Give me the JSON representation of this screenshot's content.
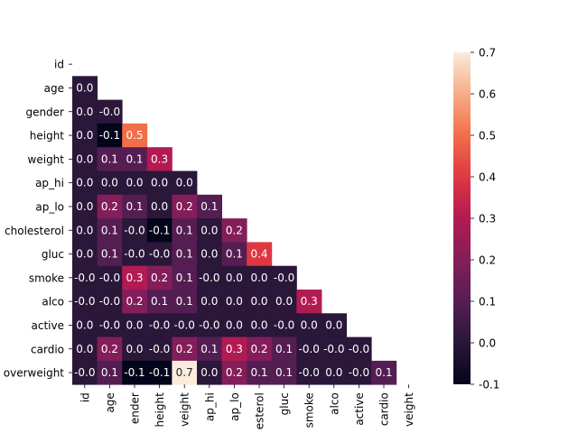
{
  "chart_data": {
    "type": "heatmap",
    "title": "",
    "xlabel": "",
    "ylabel": "",
    "mask": "upper-triangle",
    "x_tick_labels": [
      "id",
      "age",
      "ender",
      "height",
      "veight",
      "ap_hi",
      "ap_lo",
      "esterol",
      "gluc",
      "smoke",
      "alco",
      "active",
      "cardio",
      "veight"
    ],
    "y_tick_labels": [
      "id",
      "age",
      "gender",
      "height",
      "weight",
      "ap_hi",
      "ap_lo",
      "cholesterol",
      "gluc",
      "smoke",
      "alco",
      "active",
      "cardio",
      "overweight"
    ],
    "values": [
      [],
      [
        "0.0"
      ],
      [
        "0.0",
        "-0.0"
      ],
      [
        "0.0",
        "-0.1",
        "0.5"
      ],
      [
        "0.0",
        "0.1",
        "0.1",
        "0.3"
      ],
      [
        "0.0",
        "0.0",
        "0.0",
        "0.0",
        "0.0"
      ],
      [
        "0.0",
        "0.2",
        "0.1",
        "0.0",
        "0.2",
        "0.1"
      ],
      [
        "0.0",
        "0.1",
        "-0.0",
        "-0.1",
        "0.1",
        "0.0",
        "0.2"
      ],
      [
        "0.0",
        "0.1",
        "-0.0",
        "-0.0",
        "0.1",
        "0.0",
        "0.1",
        "0.4"
      ],
      [
        "-0.0",
        "-0.0",
        "0.3",
        "0.2",
        "0.1",
        "-0.0",
        "0.0",
        "0.0",
        "-0.0"
      ],
      [
        "-0.0",
        "-0.0",
        "0.2",
        "0.1",
        "0.1",
        "0.0",
        "0.0",
        "0.0",
        "0.0",
        "0.3"
      ],
      [
        "0.0",
        "-0.0",
        "0.0",
        "-0.0",
        "-0.0",
        "-0.0",
        "0.0",
        "0.0",
        "-0.0",
        "0.0",
        "0.0"
      ],
      [
        "0.0",
        "0.2",
        "0.0",
        "-0.0",
        "0.2",
        "0.1",
        "0.3",
        "0.2",
        "0.1",
        "-0.0",
        "-0.0",
        "-0.0"
      ],
      [
        "-0.0",
        "0.1",
        "-0.1",
        "-0.1",
        "0.7",
        "0.0",
        "0.2",
        "0.1",
        "0.1",
        "-0.0",
        "0.0",
        "-0.0",
        "0.1"
      ]
    ],
    "colorbar": {
      "min": -0.1,
      "max": 0.7,
      "ticks": [
        "-0.1",
        "0.0",
        "0.1",
        "0.2",
        "0.3",
        "0.4",
        "0.5",
        "0.6",
        "0.7"
      ],
      "colormap": "rocket"
    }
  }
}
